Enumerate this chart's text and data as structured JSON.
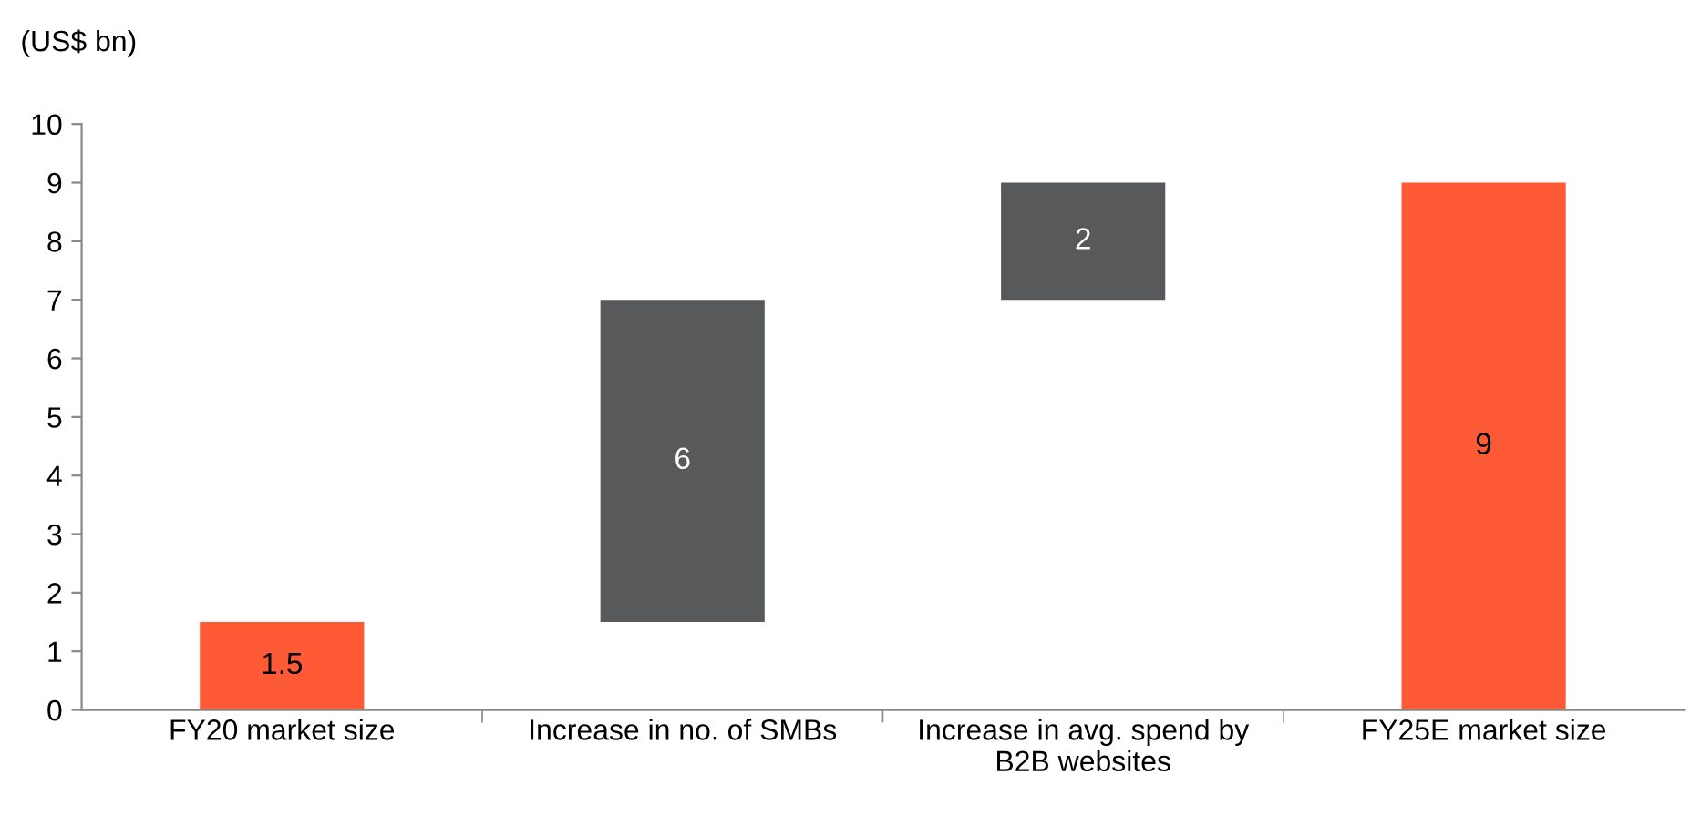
{
  "chart_data": {
    "type": "bar",
    "ylabel": "(US$ bn)",
    "categories": [
      "FY20 market size",
      "Increase in no. of SMBs",
      "Increase in avg. spend by\nB2B websites",
      "FY25E market size"
    ],
    "values": [
      1.5,
      5.5,
      2,
      9
    ],
    "base": [
      0,
      1.5,
      7,
      0
    ],
    "colors": [
      "#ff5a36",
      "#58595b",
      "#58595b",
      "#ff5a36"
    ],
    "value_labels": [
      "1.5",
      "6",
      "2",
      "9"
    ],
    "ylim": [
      0,
      10
    ],
    "yticks": [
      0,
      1,
      2,
      3,
      4,
      5,
      6,
      7,
      8,
      9,
      10
    ],
    "grid": false,
    "legend": false
  }
}
